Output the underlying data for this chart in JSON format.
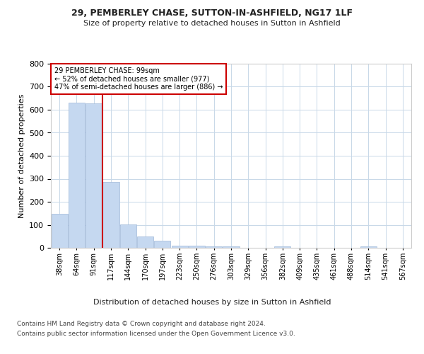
{
  "title_line1": "29, PEMBERLEY CHASE, SUTTON-IN-ASHFIELD, NG17 1LF",
  "title_line2": "Size of property relative to detached houses in Sutton in Ashfield",
  "xlabel": "Distribution of detached houses by size in Sutton in Ashfield",
  "ylabel": "Number of detached properties",
  "footer_line1": "Contains HM Land Registry data © Crown copyright and database right 2024.",
  "footer_line2": "Contains public sector information licensed under the Open Government Licence v3.0.",
  "property_size": 99,
  "property_line_label": "29 PEMBERLEY CHASE: 99sqm",
  "annotation_line1": "← 52% of detached houses are smaller (977)",
  "annotation_line2": "47% of semi-detached houses are larger (886) →",
  "bar_color": "#c5d8f0",
  "bar_edge_color": "#a0b8d8",
  "vline_color": "#cc0000",
  "annotation_box_color": "#cc0000",
  "background_color": "#ffffff",
  "grid_color": "#c8d8e8",
  "categories": [
    "38sqm",
    "64sqm",
    "91sqm",
    "117sqm",
    "144sqm",
    "170sqm",
    "197sqm",
    "223sqm",
    "250sqm",
    "276sqm",
    "303sqm",
    "329sqm",
    "356sqm",
    "382sqm",
    "409sqm",
    "435sqm",
    "461sqm",
    "488sqm",
    "514sqm",
    "541sqm",
    "567sqm"
  ],
  "values": [
    148,
    632,
    628,
    287,
    103,
    48,
    30,
    10,
    10,
    5,
    5,
    0,
    0,
    7,
    0,
    0,
    0,
    0,
    5,
    0,
    0
  ],
  "ylim": [
    0,
    800
  ],
  "yticks": [
    0,
    100,
    200,
    300,
    400,
    500,
    600,
    700,
    800
  ]
}
